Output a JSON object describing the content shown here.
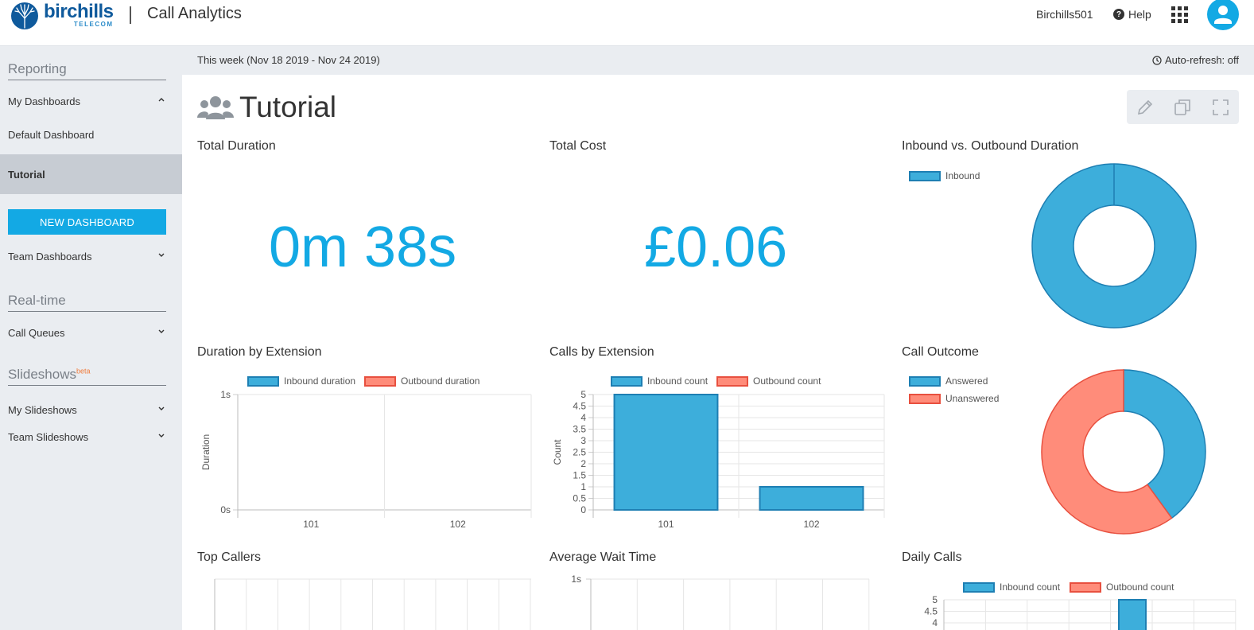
{
  "header": {
    "logo_brand": "birchills",
    "logo_sub": "TELECOM",
    "app_title": "Call Analytics",
    "account": "Birchills501",
    "help": "Help",
    "icons": [
      "help-icon",
      "apps-grid-icon",
      "user-avatar-icon"
    ]
  },
  "sidebar": {
    "reporting_heading": "Reporting",
    "items": [
      {
        "label": "My Dashboards",
        "chevron": "up"
      },
      {
        "label": "Default Dashboard"
      },
      {
        "label": "Tutorial",
        "active": true
      }
    ],
    "new_dashboard": "NEW DASHBOARD",
    "team_dashboards": "Team Dashboards",
    "realtime_heading": "Real-time",
    "call_queues": "Call Queues",
    "slideshows_heading": "Slideshows",
    "slideshows_badge": "beta",
    "my_slideshows": "My Slideshows",
    "team_slideshows": "Team Slideshows"
  },
  "datebar": {
    "range": "This week (Nov 18 2019 - Nov 24 2019)",
    "auto_refresh": "Auto-refresh: off"
  },
  "dashboard": {
    "title": "Tutorial",
    "toolbar_icons": [
      "pencil-icon",
      "copy-icon",
      "fullscreen-icon"
    ]
  },
  "panels": {
    "total_duration": {
      "title": "Total Duration",
      "value": "0m 38s"
    },
    "total_cost": {
      "title": "Total Cost",
      "value": "£0.06"
    },
    "inout_duration": {
      "title": "Inbound vs. Outbound Duration"
    },
    "duration_by_ext": {
      "title": "Duration by Extension"
    },
    "calls_by_ext": {
      "title": "Calls by Extension"
    },
    "call_outcome": {
      "title": "Call Outcome"
    },
    "top_callers": {
      "title": "Top Callers"
    },
    "avg_wait": {
      "title": "Average Wait Time"
    },
    "daily_calls": {
      "title": "Daily Calls"
    }
  },
  "colors": {
    "accent": "#13a9e4",
    "inbound": "#3daedb",
    "outbound": "#ff8c7a"
  },
  "chart_data": [
    {
      "type": "pie",
      "title": "Inbound vs. Outbound Duration",
      "categories": [
        "Inbound"
      ],
      "values": [
        38
      ],
      "legend": "top-left"
    },
    {
      "type": "bar",
      "title": "Duration by Extension",
      "categories": [
        "101",
        "102"
      ],
      "series": [
        {
          "name": "Inbound duration",
          "values": [
            0,
            0
          ]
        },
        {
          "name": "Outbound duration",
          "values": [
            0,
            0
          ]
        }
      ],
      "ylabel": "Duration",
      "yticks": [
        "1s",
        "0s"
      ],
      "ylim": [
        0,
        1
      ]
    },
    {
      "type": "bar",
      "title": "Calls by Extension",
      "categories": [
        "101",
        "102"
      ],
      "series": [
        {
          "name": "Inbound count",
          "values": [
            5,
            1
          ]
        },
        {
          "name": "Outbound count",
          "values": [
            0,
            0
          ]
        }
      ],
      "ylabel": "Count",
      "yticks": [
        "5",
        "4.5",
        "4",
        "3.5",
        "3",
        "2.5",
        "2",
        "1.5",
        "1",
        "0.5",
        "0"
      ],
      "ylim": [
        0,
        5
      ]
    },
    {
      "type": "pie",
      "title": "Call Outcome",
      "categories": [
        "Answered",
        "Unanswered"
      ],
      "values": [
        2,
        3
      ],
      "legend": "top-left"
    },
    {
      "type": "bar",
      "title": "Average Wait Time",
      "yticks": [
        "1s"
      ]
    },
    {
      "type": "bar",
      "title": "Daily Calls",
      "series": [
        {
          "name": "Inbound count"
        },
        {
          "name": "Outbound count"
        }
      ],
      "yticks": [
        "5",
        "4.5",
        "4"
      ]
    }
  ]
}
